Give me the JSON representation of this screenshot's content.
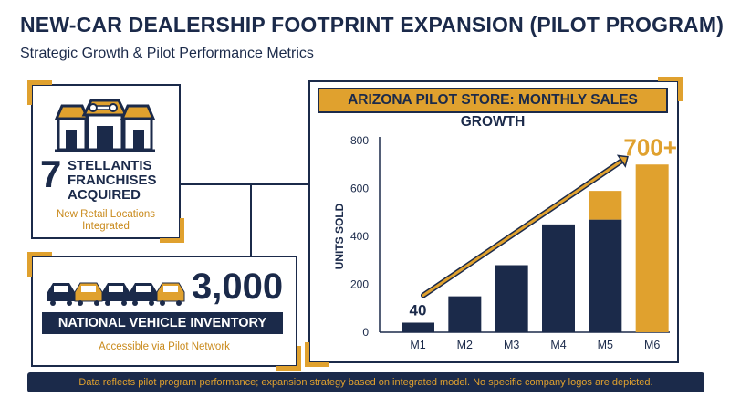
{
  "header": {
    "title": "NEW-CAR DEALERSHIP FOOTPRINT EXPANSION (PILOT PROGRAM)",
    "subtitle": "Strategic Growth & Pilot Performance Metrics"
  },
  "franchise_card": {
    "number": "7",
    "label": "STELLANTIS FRANCHISES ACQUIRED",
    "sub_label": "New Retail Locations Integrated",
    "icon": "storefront-key-icon"
  },
  "inventory_card": {
    "number": "3,000",
    "banner": "NATIONAL VEHICLE INVENTORY",
    "sub_label": "Accessible via Pilot Network",
    "icon": "car-row-icon"
  },
  "chart_data": {
    "type": "bar",
    "title": "ARIZONA PILOT STORE: MONTHLY SALES GROWTH",
    "xlabel": "",
    "ylabel": "UNITS SOLD",
    "categories": [
      "M1",
      "M2",
      "M3",
      "M4",
      "M5",
      "M6"
    ],
    "values": [
      40,
      150,
      280,
      450,
      590,
      700
    ],
    "stacked_highlight": {
      "category": "M5",
      "base": 470,
      "top": 590
    },
    "ylim": [
      0,
      800
    ],
    "yticks": [
      "0",
      "200",
      "400",
      "600",
      "800"
    ],
    "annotations": {
      "start": "40",
      "end": "700+"
    },
    "grid": false,
    "colors": {
      "navy": "#1b2a4a",
      "gold": "#e0a12e"
    }
  },
  "footer": {
    "note": "Data reflects pilot program performance; expansion strategy based on integrated model. No specific company logos are depicted."
  }
}
